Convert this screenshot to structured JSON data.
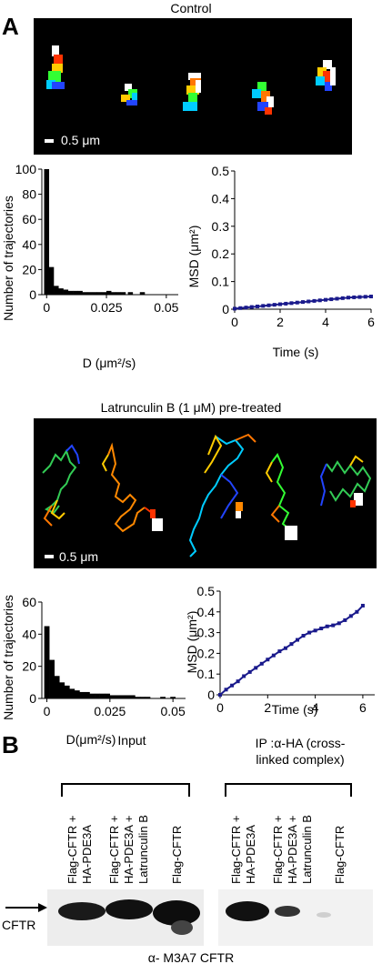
{
  "panelA": {
    "letter": "A",
    "control": {
      "title": "Control",
      "scale_bar_label": "0.5 μm",
      "hist": {
        "type": "bar",
        "ylabel": "Number of trajectories",
        "xlabel": "D (μm²/s)",
        "xticks": [
          "0",
          "0.025",
          "0.05"
        ],
        "yticks": [
          "0",
          "20",
          "40",
          "60",
          "80",
          "100"
        ],
        "xlim": [
          -0.002,
          0.055
        ],
        "ylim": [
          0,
          100
        ],
        "x": [
          0,
          0.002,
          0.004,
          0.006,
          0.008,
          0.01,
          0.012,
          0.014,
          0.016,
          0.018,
          0.02,
          0.022,
          0.024,
          0.026,
          0.028,
          0.03,
          0.032,
          0.035,
          0.04
        ],
        "values": [
          100,
          22,
          7,
          5,
          4,
          3,
          3,
          3,
          2,
          2,
          2,
          2,
          2,
          3,
          2,
          2,
          2,
          2,
          2
        ]
      },
      "msd": {
        "type": "line",
        "ylabel": "MSD (μm²)",
        "xlabel": "Time (s)",
        "xticks": [
          "0",
          "2",
          "4",
          "6"
        ],
        "yticks": [
          "0",
          "0.1",
          "0.2",
          "0.3",
          "0.4",
          "0.5"
        ],
        "xlim": [
          0,
          6
        ],
        "ylim": [
          0,
          0.5
        ],
        "x": [
          0,
          0.25,
          0.5,
          0.75,
          1,
          1.25,
          1.5,
          1.75,
          2,
          2.25,
          2.5,
          2.75,
          3,
          3.25,
          3.5,
          3.75,
          4,
          4.25,
          4.5,
          4.75,
          5,
          5.25,
          5.5,
          5.75,
          6
        ],
        "y": [
          0.002,
          0.004,
          0.006,
          0.008,
          0.01,
          0.012,
          0.014,
          0.016,
          0.018,
          0.02,
          0.022,
          0.024,
          0.026,
          0.028,
          0.03,
          0.032,
          0.034,
          0.036,
          0.038,
          0.04,
          0.042,
          0.043,
          0.044,
          0.045,
          0.046
        ]
      }
    },
    "latrunculin": {
      "title": "Latrunculin B (1 μM) pre-treated",
      "scale_bar_label": "0.5 μm",
      "hist": {
        "type": "bar",
        "ylabel": "Number of trajectories",
        "xlabel": "D(μm²/s)",
        "xticks": [
          "0",
          "0.025",
          "0.05"
        ],
        "yticks": [
          "0",
          "20",
          "40",
          "60"
        ],
        "xlim": [
          -0.002,
          0.055
        ],
        "ylim": [
          0,
          60
        ],
        "x": [
          0,
          0.002,
          0.004,
          0.006,
          0.008,
          0.01,
          0.012,
          0.014,
          0.016,
          0.018,
          0.02,
          0.022,
          0.024,
          0.026,
          0.028,
          0.03,
          0.032,
          0.034,
          0.036,
          0.038,
          0.04,
          0.046,
          0.05
        ],
        "values": [
          45,
          24,
          14,
          10,
          8,
          6,
          5,
          4,
          4,
          3,
          3,
          3,
          3,
          2,
          2,
          2,
          2,
          2,
          1,
          1,
          1,
          1,
          1
        ]
      },
      "msd": {
        "type": "line",
        "ylabel": "MSD (μm²)",
        "xlabel": "Time (s)",
        "xticks": [
          "0",
          "2",
          "4",
          "6"
        ],
        "yticks": [
          "0",
          "0.1",
          "0.2",
          "0.3",
          "0.4",
          "0.5"
        ],
        "xlim": [
          0,
          6.5
        ],
        "ylim": [
          0,
          0.5
        ],
        "x": [
          0,
          0.25,
          0.5,
          0.75,
          1,
          1.25,
          1.5,
          1.75,
          2,
          2.25,
          2.5,
          2.75,
          3,
          3.25,
          3.5,
          3.75,
          4,
          4.25,
          4.5,
          4.75,
          5,
          5.25,
          5.5,
          5.75,
          6
        ],
        "y": [
          0.0,
          0.025,
          0.045,
          0.065,
          0.09,
          0.11,
          0.13,
          0.15,
          0.17,
          0.19,
          0.21,
          0.225,
          0.245,
          0.265,
          0.285,
          0.3,
          0.31,
          0.32,
          0.33,
          0.335,
          0.345,
          0.36,
          0.38,
          0.4,
          0.43
        ]
      }
    }
  },
  "panelB": {
    "letter": "B",
    "input_title": "Input",
    "ip_title_line1": "IP :α-HA (cross-",
    "ip_title_line2": "linked complex)",
    "lane_labels": [
      [
        "Flag-CFTR +",
        "HA-PDE3A"
      ],
      [
        "Flag-CFTR +",
        "HA-PDE3A +",
        "Latrunculin B"
      ],
      [
        "Flag-CFTR"
      ]
    ],
    "cftr_label": "CFTR",
    "antibody_label": "α- M3A7 CFTR"
  },
  "colors": {
    "image_bg": "#000000",
    "msd_line": "#1a1a8c",
    "bar": "#000000"
  }
}
